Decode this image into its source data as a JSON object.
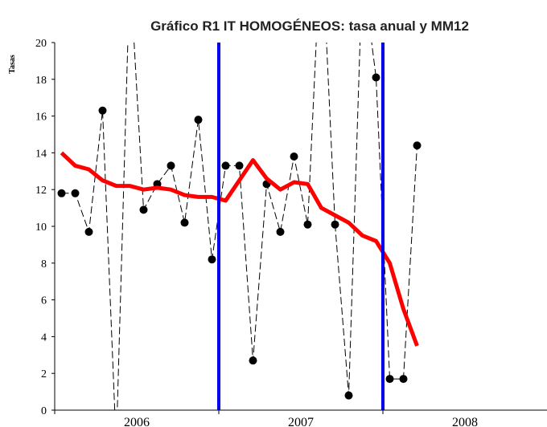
{
  "chart_data": {
    "type": "line",
    "title": "Gráfico R1  IT HOMOGÉNEOS: tasa anual y MM12",
    "ylabel": "Tasas",
    "x_labels": [
      "2006",
      "2007",
      "2008"
    ],
    "ylim": [
      0,
      20
    ],
    "yticks": [
      0,
      2,
      4,
      6,
      8,
      10,
      12,
      14,
      16,
      18,
      20
    ],
    "series": [
      {
        "name": "tasa anual",
        "color": "#000000",
        "values": [
          11.8,
          11.8,
          9.7,
          16.3,
          -2,
          24,
          10.9,
          12.3,
          13.3,
          10.2,
          15.8,
          8.2,
          13.3,
          13.3,
          2.7,
          12.3,
          9.7,
          13.8,
          10.1,
          26,
          10.1,
          0.8,
          24,
          18.1,
          1.7,
          1.7,
          14.4
        ]
      },
      {
        "name": "MM12",
        "color": "#ff0000",
        "values": [
          14.0,
          13.3,
          13.1,
          12.5,
          12.2,
          12.2,
          12.0,
          12.1,
          12.0,
          11.7,
          11.6,
          11.6,
          11.4,
          12.5,
          13.6,
          12.6,
          12.0,
          12.4,
          12.3,
          11.0,
          10.6,
          10.2,
          9.5,
          9.2,
          8.0,
          5.5,
          3.5
        ]
      }
    ]
  }
}
